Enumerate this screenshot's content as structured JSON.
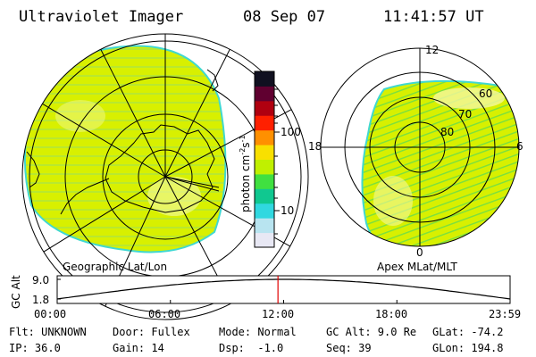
{
  "header": {
    "instrument": "Ultraviolet Imager",
    "date": "08 Sep 07",
    "time": "11:41:57 UT"
  },
  "left_panel": {
    "caption": "Geographic Lat/Lon"
  },
  "right_panel": {
    "caption": "Apex MLat/MLT",
    "mlt_labels": [
      "12",
      "18",
      "6",
      "0"
    ],
    "mlat_labels": [
      "60",
      "70",
      "80"
    ]
  },
  "colorbar": {
    "unit_label": "photon cm",
    "unit_sup1": "-2",
    "unit_mid": "s",
    "unit_sup2": "-1",
    "tick_labels": [
      "100",
      "10"
    ],
    "colors": [
      "#e8e8f4",
      "#b8e4f0",
      "#30d8e0",
      "#10c890",
      "#40e040",
      "#c0f000",
      "#f8e000",
      "#ff9000",
      "#ff2000",
      "#b00010",
      "#600030",
      "#101020"
    ]
  },
  "timeline": {
    "axis_label": "GC Alt",
    "y_ticks": [
      "9.0",
      "1.8"
    ],
    "x_ticks": [
      "00:00",
      "06:00",
      "12:00",
      "18:00",
      "23:59"
    ],
    "marker_time": "11:42",
    "marker_color": "#e00000"
  },
  "info": {
    "flt": "Flt: UNKNOWN",
    "door": "Door: Fullex",
    "mode": "Mode: Normal",
    "gc_alt": "GC Alt: 9.0 Re",
    "glat": "GLat: -74.2",
    "ip": "IP: 36.0",
    "gain": "Gain: 14",
    "dsp": "Dsp:  -1.0",
    "seq": "Seq: 39",
    "glon": "GLon: 194.8"
  },
  "colors": {
    "emission": "#d8f000",
    "emission_bright": "#f4f8a0",
    "edge": "#40d8d0",
    "streak": "#78e040"
  }
}
